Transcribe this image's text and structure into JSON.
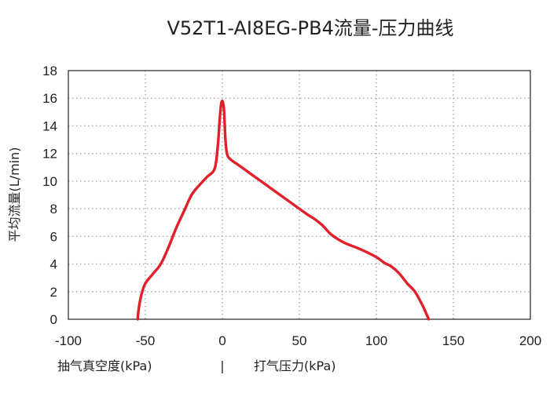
{
  "chart_data": {
    "type": "line",
    "title": "V52T1-AI8EG-PB4流量-压力曲线",
    "ylabel": "平均流量(L/min)",
    "xlabel_left": "抽气真空度(kPa)",
    "xlabel_separator": "|",
    "xlabel_right": "打气压力(kPa)",
    "xlim": [
      -100,
      200
    ],
    "ylim": [
      0,
      18
    ],
    "x_ticks": [
      -100,
      -50,
      0,
      50,
      100,
      150,
      200
    ],
    "y_ticks": [
      0,
      2,
      4,
      6,
      8,
      10,
      12,
      14,
      16,
      18
    ],
    "grid": true,
    "line_color": "#e0202a",
    "series": [
      {
        "x": [
          -55,
          -54.5,
          -53.5,
          -52,
          -50,
          -45,
          -40,
          -35,
          -30,
          -25,
          -20,
          -15,
          -10,
          -5,
          -3,
          -2,
          -1,
          0,
          1,
          2,
          3,
          5,
          10,
          20,
          30,
          40,
          50,
          55,
          60,
          65,
          70,
          75,
          80,
          90,
          100,
          105,
          110,
          115,
          120,
          125,
          130,
          134
        ],
        "y": [
          0,
          0.6,
          1.3,
          2.0,
          2.6,
          3.3,
          4.0,
          5.2,
          6.6,
          7.8,
          9.0,
          9.7,
          10.3,
          10.9,
          12.5,
          14.0,
          15.4,
          15.8,
          15.2,
          13.0,
          12.0,
          11.6,
          11.2,
          10.4,
          9.6,
          8.8,
          8.0,
          7.6,
          7.25,
          6.8,
          6.2,
          5.8,
          5.5,
          5.05,
          4.5,
          4.1,
          3.8,
          3.3,
          2.6,
          2.0,
          1.0,
          0
        ]
      }
    ]
  }
}
